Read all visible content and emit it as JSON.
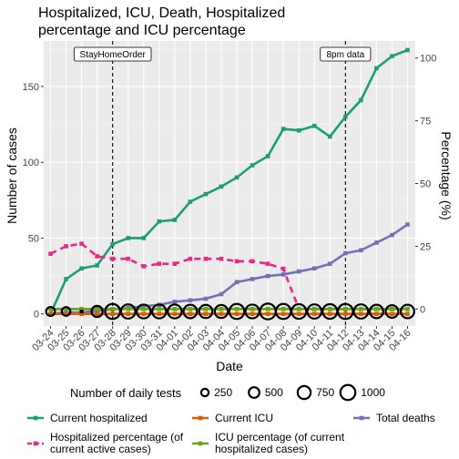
{
  "chart_data": {
    "type": "line",
    "title_lines": [
      "Hospitalized, ICU, Death, Hospitalized",
      "percentage and ICU percentage"
    ],
    "xlabel": "Date",
    "ylabel_left": "Number of cases",
    "ylabel_right": "Percentage (%)",
    "categories": [
      "03-24",
      "03-25",
      "03-26",
      "03-27",
      "03-28",
      "03-29",
      "03-30",
      "03-31",
      "04-01",
      "04-02",
      "04-03",
      "04-04",
      "04-05",
      "04-06",
      "04-07",
      "04-08",
      "04-09",
      "04-10",
      "04-11",
      "04-12",
      "04-13",
      "04-14",
      "04-15",
      "04-16"
    ],
    "ylim_left": [
      -8,
      180
    ],
    "yticks_left": [
      0,
      50,
      100,
      150
    ],
    "ylim_right": [
      -6.8,
      106.8
    ],
    "yticks_right": [
      0,
      25,
      50,
      75,
      100
    ],
    "grid": true,
    "series": [
      {
        "name": "Current hospitalized",
        "axis": "left",
        "color": "#1b9e77",
        "dashed": false,
        "values": [
          0,
          23,
          30,
          32,
          46,
          50,
          50,
          61,
          62,
          74,
          79,
          84,
          90,
          98,
          104,
          122,
          121,
          124,
          117,
          130,
          141,
          162,
          170,
          174
        ]
      },
      {
        "name": "Current ICU",
        "axis": "left",
        "color": "#d95f02",
        "dashed": false,
        "values": [
          0,
          0,
          0,
          0,
          0,
          0,
          0,
          0,
          0,
          0,
          0,
          0,
          0,
          0,
          0,
          0,
          0,
          0,
          0,
          0,
          0,
          0,
          0,
          0
        ]
      },
      {
        "name": "Total deaths",
        "axis": "left",
        "color": "#7570b3",
        "dashed": false,
        "values": [
          0,
          1,
          1,
          2,
          3,
          4,
          5,
          6,
          8,
          9,
          10,
          13,
          21,
          23,
          25,
          26,
          28,
          30,
          33,
          40,
          42,
          47,
          52,
          59
        ]
      },
      {
        "name": "Hospitalized percentage (of current active cases)",
        "axis": "right",
        "color": "#e7298a",
        "dashed": true,
        "values": [
          22,
          25,
          26,
          21,
          20,
          20,
          17,
          18,
          18,
          20,
          20,
          20,
          19,
          19,
          18,
          16,
          0,
          0,
          0,
          0,
          0,
          0,
          0,
          0
        ]
      },
      {
        "name": "ICU percentage (of current hospitalized cases)",
        "axis": "right",
        "color": "#66a61e",
        "dashed": false,
        "values": [
          0,
          0,
          0,
          0,
          0,
          0,
          0,
          0,
          0,
          0,
          0,
          0,
          0,
          0,
          0,
          0,
          0,
          0,
          0,
          0,
          0,
          0,
          0,
          0
        ]
      }
    ],
    "daily_tests": {
      "name": "Number of daily tests",
      "values": [
        350,
        330,
        0,
        550,
        1000,
        900,
        850,
        850,
        850,
        800,
        780,
        750,
        1000,
        850,
        1100,
        1000,
        950,
        900,
        950,
        1000,
        900,
        800,
        700,
        800
      ],
      "legend_breaks": [
        250,
        500,
        750,
        1000
      ]
    },
    "annotations": [
      {
        "label": "StayHomeOrder",
        "x": "03-28"
      },
      {
        "label": "8pm data",
        "x": "04-12"
      }
    ],
    "legend_position": "bottom"
  }
}
